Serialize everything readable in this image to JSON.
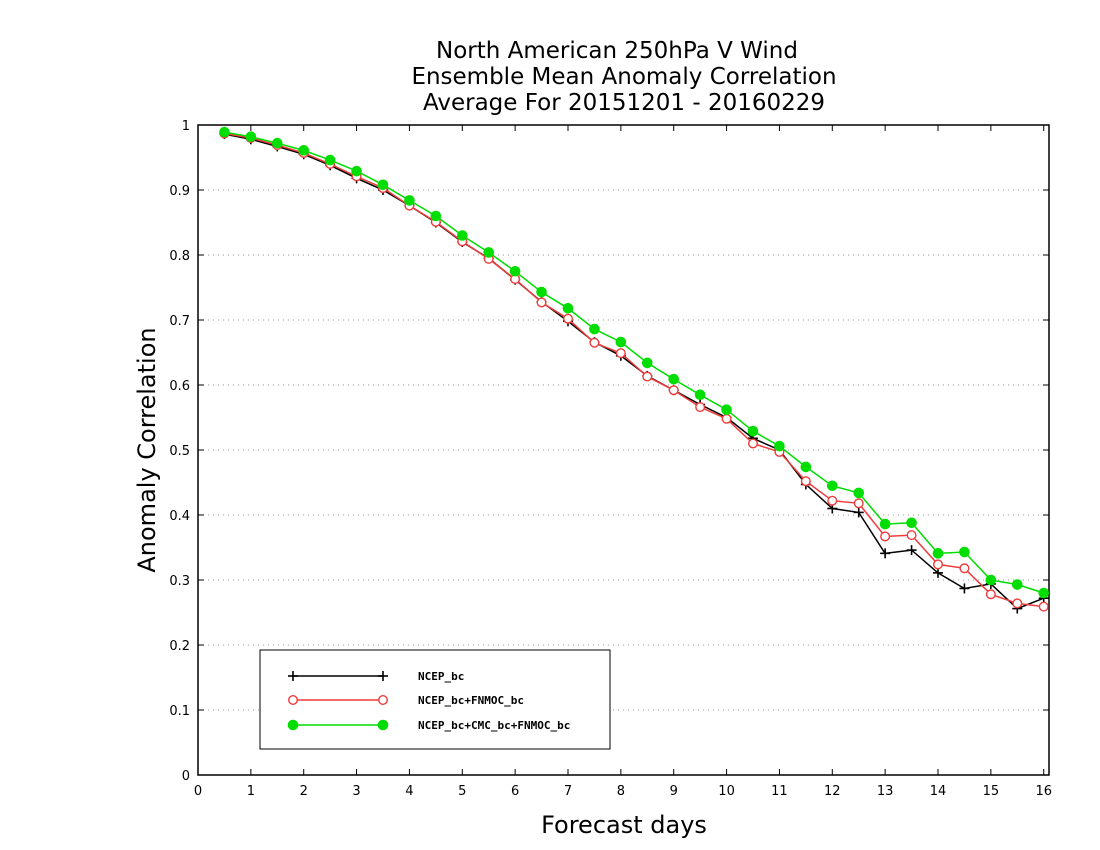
{
  "chart_data": {
    "type": "line",
    "title": [
      "North American 250hPa V Wind",
      "Ensemble Mean Anomaly Correlation",
      "Average For 20151201 - 20160229"
    ],
    "xlabel": "Forecast days",
    "ylabel": "Anomaly Correlation",
    "xlim": [
      0,
      16.1
    ],
    "ylim": [
      0,
      1
    ],
    "xticks": [
      0,
      1,
      2,
      3,
      4,
      5,
      6,
      7,
      8,
      9,
      10,
      11,
      12,
      13,
      14,
      15,
      16
    ],
    "yticks": [
      0,
      0.1,
      0.2,
      0.3,
      0.4,
      0.5,
      0.6,
      0.7,
      0.8,
      0.9,
      1
    ],
    "grid": "horizontal dotted",
    "legend_position": "bottom-left",
    "x": [
      0.5,
      1,
      1.5,
      2,
      2.5,
      3,
      3.5,
      4,
      4.5,
      5,
      5.5,
      6,
      6.5,
      7,
      7.5,
      8,
      8.5,
      9,
      9.5,
      10,
      10.5,
      11,
      11.5,
      12,
      12.5,
      13,
      13.5,
      14,
      14.5,
      15,
      15.5,
      16
    ],
    "series": [
      {
        "name": "NCEP_bc",
        "color": "#000000",
        "marker": "plus",
        "values": [
          0.986,
          0.978,
          0.967,
          0.955,
          0.938,
          0.918,
          0.9,
          0.876,
          0.85,
          0.82,
          0.795,
          0.762,
          0.728,
          0.698,
          0.666,
          0.645,
          0.614,
          0.592,
          0.57,
          0.55,
          0.518,
          0.5,
          0.447,
          0.41,
          0.404,
          0.341,
          0.346,
          0.311,
          0.287,
          0.294,
          0.256,
          0.272
        ]
      },
      {
        "name": "NCEP_bc+FNMOC_bc",
        "color": "#ef3b3b",
        "marker": "open-circle",
        "values": [
          0.987,
          0.98,
          0.969,
          0.957,
          0.94,
          0.921,
          0.903,
          0.876,
          0.851,
          0.821,
          0.794,
          0.763,
          0.727,
          0.702,
          0.665,
          0.649,
          0.613,
          0.592,
          0.566,
          0.548,
          0.51,
          0.497,
          0.452,
          0.422,
          0.418,
          0.367,
          0.369,
          0.324,
          0.318,
          0.278,
          0.264,
          0.259
        ]
      },
      {
        "name": "NCEP_bc+CMC_bc+FNMOC_bc",
        "color": "#00dd00",
        "marker": "filled-circle",
        "values": [
          0.989,
          0.982,
          0.972,
          0.961,
          0.946,
          0.929,
          0.908,
          0.884,
          0.86,
          0.83,
          0.804,
          0.775,
          0.743,
          0.718,
          0.686,
          0.666,
          0.634,
          0.609,
          0.585,
          0.562,
          0.529,
          0.506,
          0.474,
          0.445,
          0.434,
          0.386,
          0.388,
          0.341,
          0.343,
          0.3,
          0.293,
          0.28
        ]
      }
    ]
  }
}
